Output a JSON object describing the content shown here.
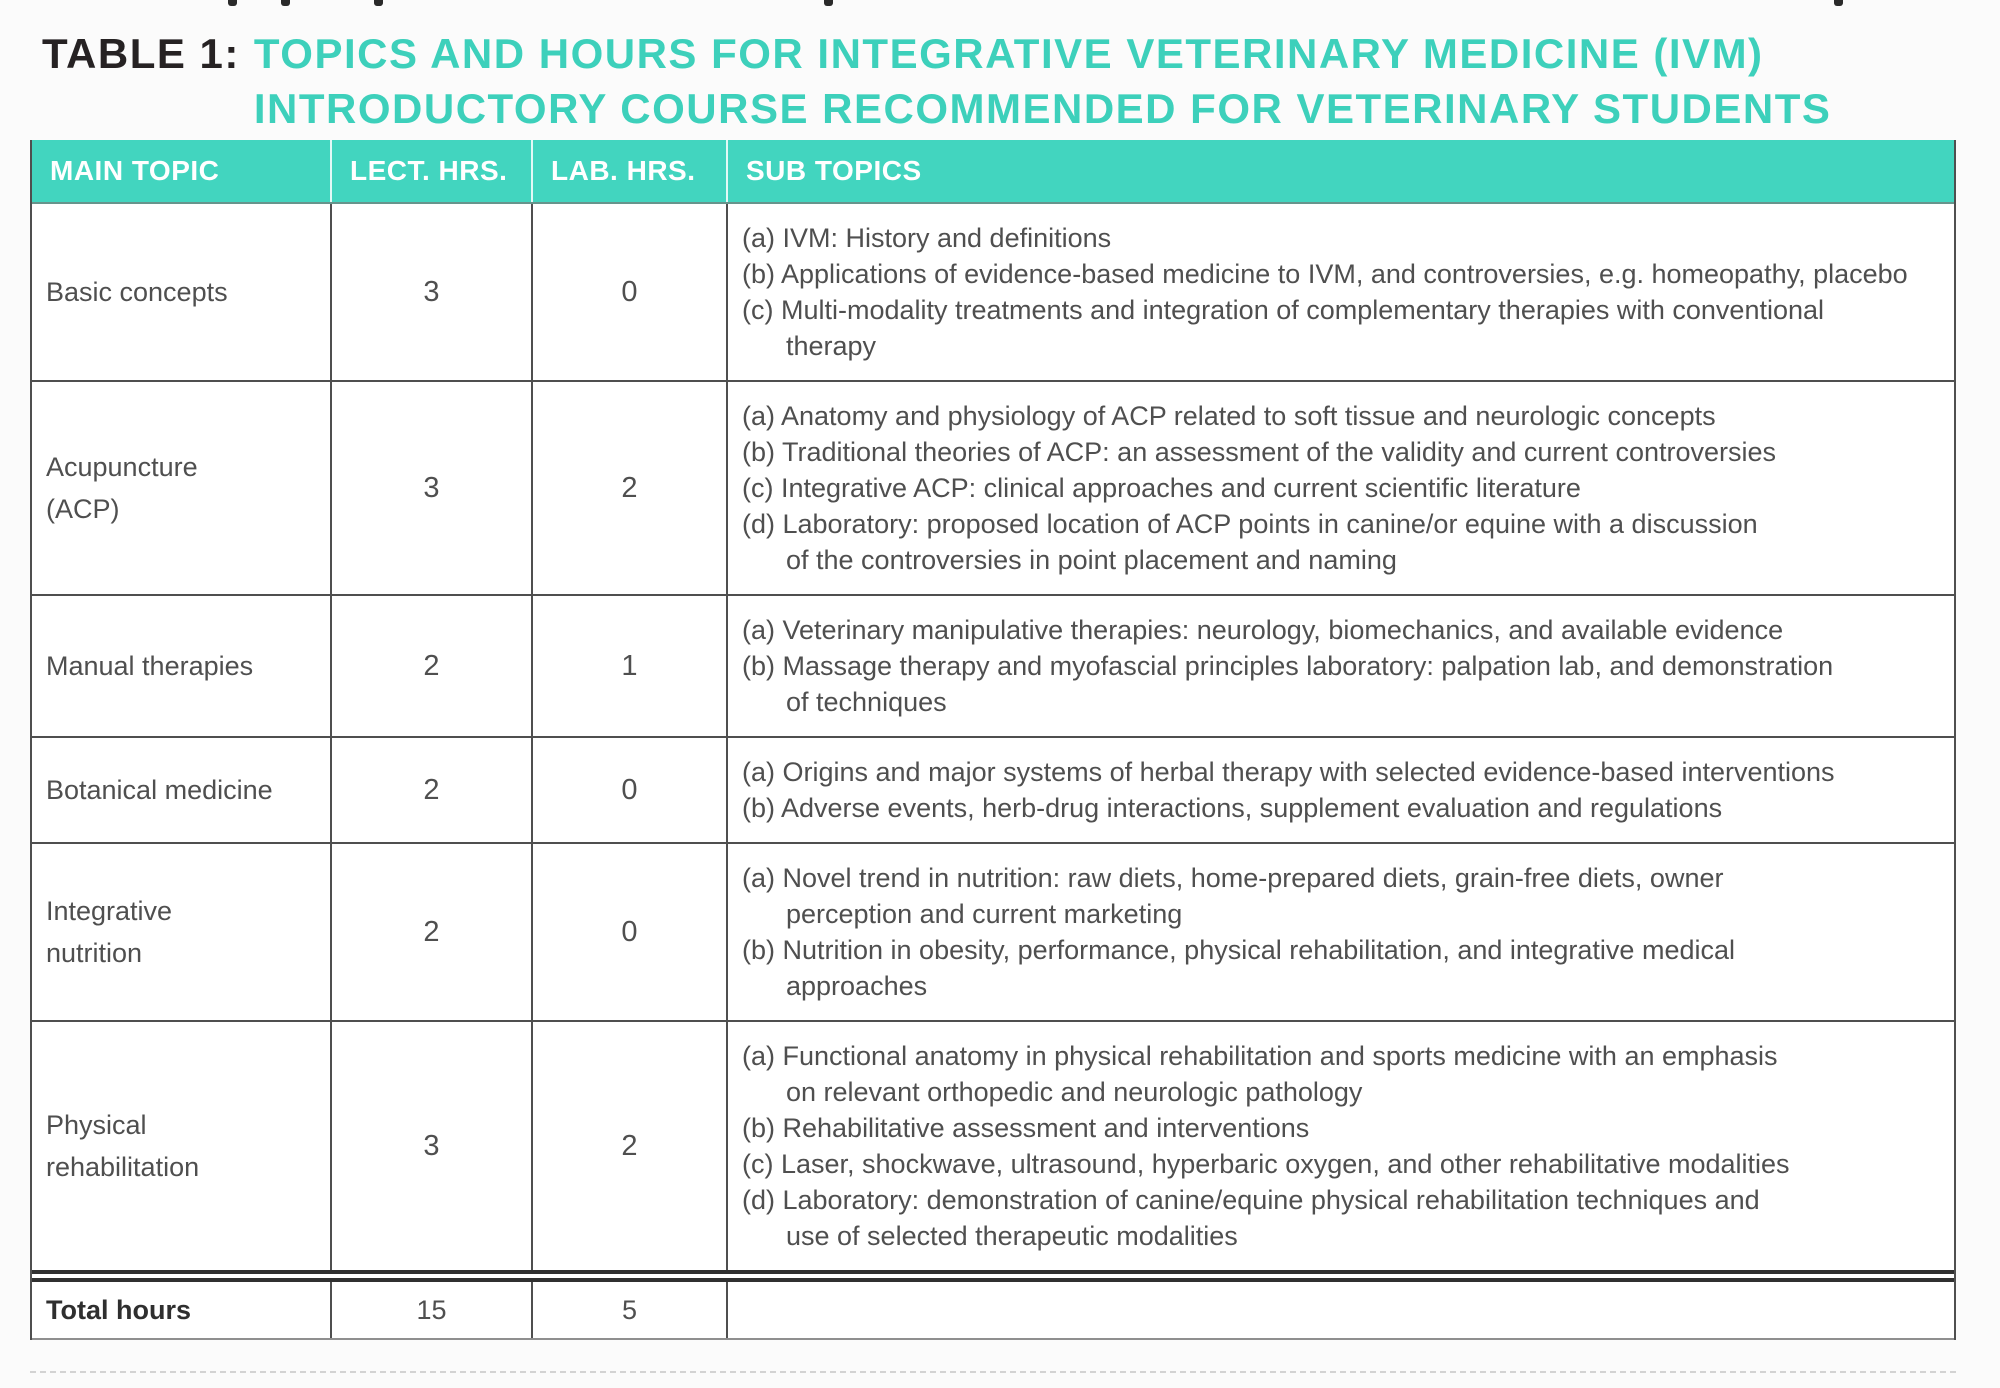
{
  "title": {
    "prefix": "TABLE 1:",
    "lines": [
      "TOPICS AND HOURS FOR INTEGRATIVE VETERINARY MEDICINE (IVM)",
      "INTRODUCTORY COURSE RECOMMENDED FOR VETERINARY STUDENTS"
    ]
  },
  "colors": {
    "accent_teal_header": "#42d5bf",
    "accent_teal_title": "#3dd0bb",
    "title_dark": "#262223",
    "body_text": "#4f4f4f",
    "border": "#4f4f4f",
    "header_text": "#ffffff"
  },
  "table": {
    "columns": [
      "MAIN TOPIC",
      "LECT. HRS.",
      "LAB. HRS.",
      "SUB TOPICS"
    ],
    "rows": [
      {
        "main_topic_lines": [
          "Basic concepts"
        ],
        "lect_hrs": "3",
        "lab_hrs": "0",
        "sub_topics": [
          {
            "marker": "(a)",
            "lines": [
              "IVM: History and definitions"
            ]
          },
          {
            "marker": "(b)",
            "lines": [
              "Applications of evidence-based medicine to IVM, and controversies, e.g. homeopathy, placebo"
            ]
          },
          {
            "marker": "(c)",
            "lines": [
              "Multi-modality treatments and integration of complementary therapies with conventional",
              "therapy"
            ]
          }
        ]
      },
      {
        "main_topic_lines": [
          "Acupuncture",
          "(ACP)"
        ],
        "lect_hrs": "3",
        "lab_hrs": "2",
        "sub_topics": [
          {
            "marker": "(a)",
            "lines": [
              "Anatomy and physiology of ACP related to soft tissue and neurologic concepts"
            ]
          },
          {
            "marker": "(b)",
            "lines": [
              "Traditional theories of ACP: an assessment of the validity and current controversies"
            ]
          },
          {
            "marker": "(c)",
            "lines": [
              "Integrative ACP: clinical approaches and current scientific literature"
            ]
          },
          {
            "marker": "(d)",
            "lines": [
              "Laboratory: proposed location of ACP points in canine/or equine with a discussion",
              "of the controversies in point placement and naming"
            ]
          }
        ]
      },
      {
        "main_topic_lines": [
          "Manual therapies"
        ],
        "lect_hrs": "2",
        "lab_hrs": "1",
        "sub_topics": [
          {
            "marker": "(a)",
            "lines": [
              "Veterinary manipulative therapies: neurology, biomechanics, and available evidence"
            ]
          },
          {
            "marker": "(b)",
            "lines": [
              "Massage therapy and myofascial principles laboratory: palpation lab, and demonstration",
              "of techniques"
            ]
          }
        ]
      },
      {
        "main_topic_lines": [
          "Botanical medicine"
        ],
        "lect_hrs": "2",
        "lab_hrs": "0",
        "sub_topics": [
          {
            "marker": "(a)",
            "lines": [
              "Origins and major systems of herbal therapy with selected evidence-based interventions"
            ]
          },
          {
            "marker": "(b)",
            "lines": [
              "Adverse events, herb-drug interactions, supplement evaluation and regulations"
            ]
          }
        ]
      },
      {
        "main_topic_lines": [
          "Integrative",
          "nutrition"
        ],
        "lect_hrs": "2",
        "lab_hrs": "0",
        "sub_topics": [
          {
            "marker": "(a)",
            "lines": [
              "Novel trend in nutrition: raw diets, home-prepared diets, grain-free diets, owner",
              "perception and current marketing"
            ]
          },
          {
            "marker": "(b)",
            "lines": [
              "Nutrition in obesity, performance, physical rehabilitation, and integrative medical",
              "approaches"
            ]
          }
        ]
      },
      {
        "main_topic_lines": [
          "Physical",
          "rehabilitation"
        ],
        "lect_hrs": "3",
        "lab_hrs": "2",
        "sub_topics": [
          {
            "marker": "(a)",
            "lines": [
              "Functional anatomy in physical rehabilitation and sports medicine with an emphasis",
              "on relevant orthopedic and neurologic pathology"
            ]
          },
          {
            "marker": "(b)",
            "lines": [
              "Rehabilitative assessment and interventions"
            ]
          },
          {
            "marker": "(c)",
            "lines": [
              "Laser, shockwave, ultrasound, hyperbaric oxygen, and other rehabilitative modalities"
            ]
          },
          {
            "marker": "(d)",
            "lines": [
              "Laboratory: demonstration of canine/equine physical rehabilitation techniques and",
              "use of selected therapeutic modalities"
            ]
          }
        ]
      }
    ],
    "total": {
      "label": "Total hours",
      "lect_hrs": "15",
      "lab_hrs": "5"
    }
  }
}
